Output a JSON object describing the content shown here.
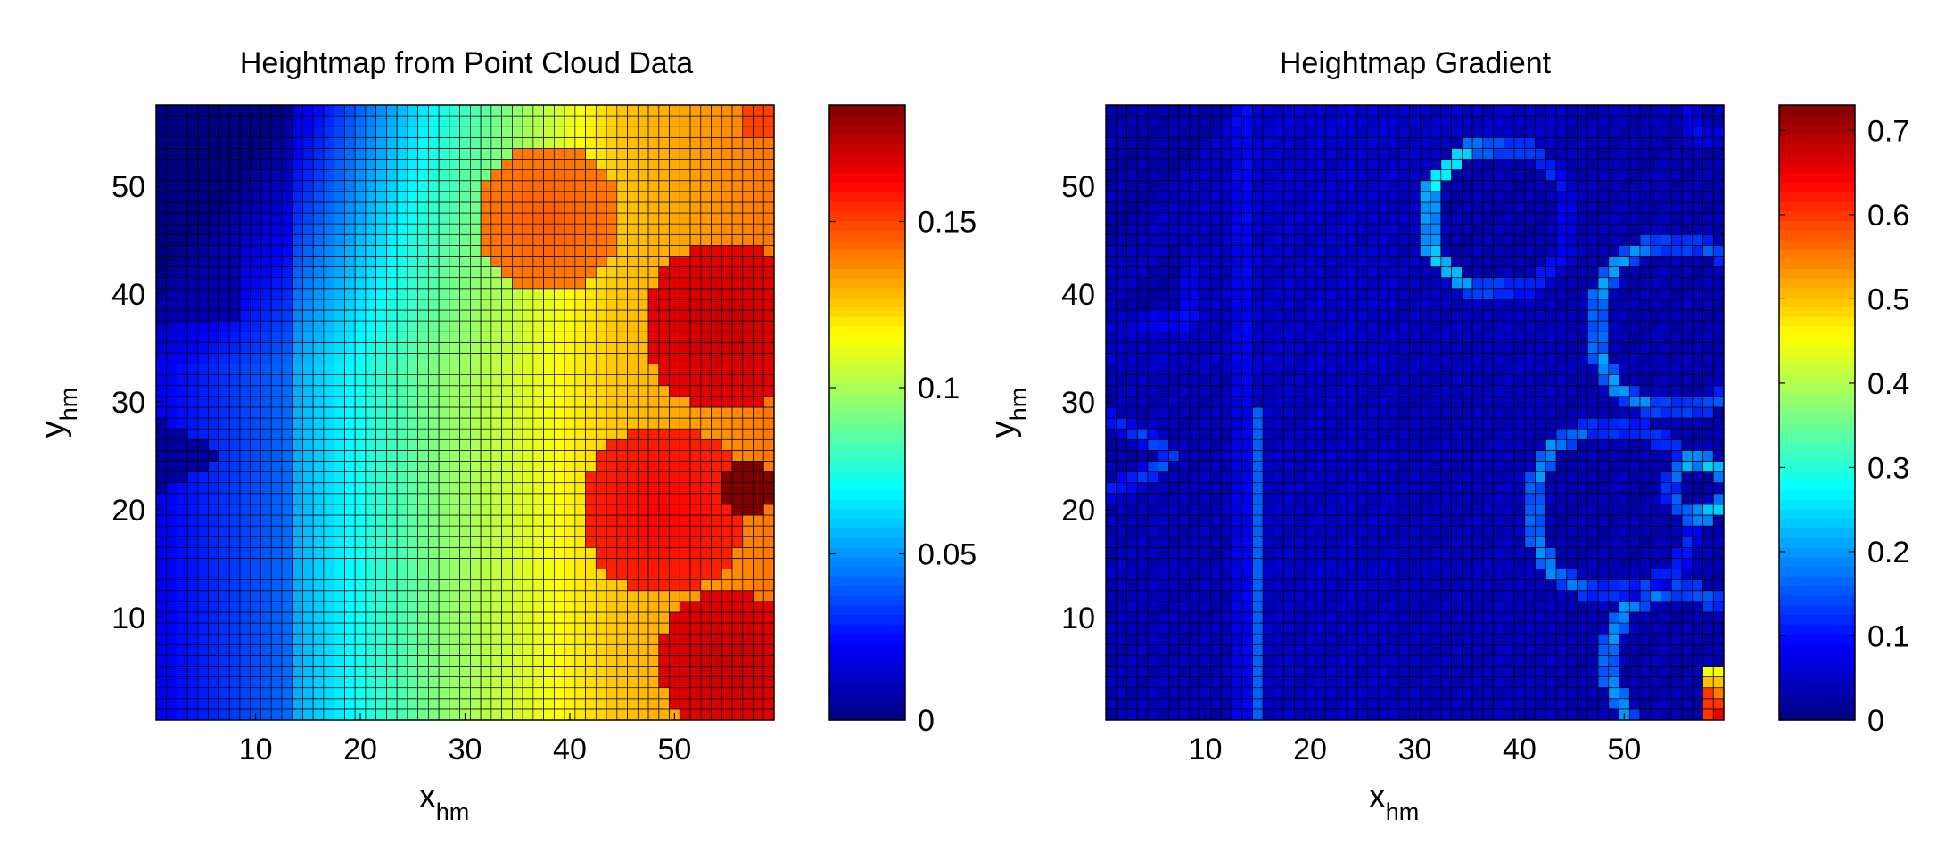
{
  "chart_data": [
    {
      "type": "heatmap",
      "title": "Heightmap from Point Cloud Data",
      "xlabel": {
        "main": "x",
        "sub": "hm"
      },
      "ylabel": {
        "main": "y",
        "sub": "hm"
      },
      "xlim": [
        0.5,
        59.5
      ],
      "ylim": [
        0.5,
        57.5
      ],
      "grid_size": [
        59,
        57
      ],
      "xticks": [
        "10",
        "20",
        "30",
        "40",
        "50"
      ],
      "yticks": [
        "10",
        "20",
        "30",
        "40",
        "50"
      ],
      "colorbar": {
        "min": 0,
        "max": 0.185,
        "ticks": [
          "0",
          "0.05",
          "0.1",
          "0.15"
        ],
        "colormap": "jet"
      },
      "field": "height"
    },
    {
      "type": "heatmap",
      "title": "Heightmap Gradient",
      "xlabel": {
        "main": "x",
        "sub": "hm"
      },
      "ylabel": {
        "main": "y",
        "sub": "hm"
      },
      "xlim": [
        0.5,
        59.5
      ],
      "ylim": [
        0.5,
        57.5
      ],
      "grid_size": [
        59,
        57
      ],
      "xticks": [
        "10",
        "20",
        "30",
        "40",
        "50"
      ],
      "yticks": [
        "10",
        "20",
        "30",
        "40",
        "50"
      ],
      "colorbar": {
        "min": 0,
        "max": 0.73,
        "ticks": [
          "0",
          "0.1",
          "0.2",
          "0.3",
          "0.4",
          "0.5",
          "0.6",
          "0.7"
        ],
        "colormap": "jet"
      },
      "field": "gradient"
    }
  ]
}
